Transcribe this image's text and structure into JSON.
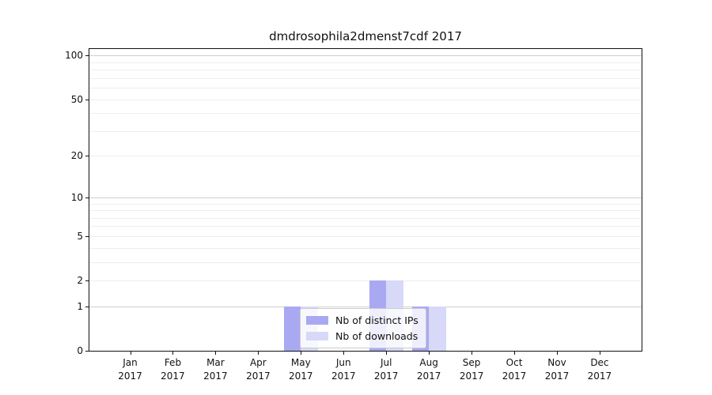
{
  "chart_data": {
    "type": "bar",
    "title": "dmdrosophila2dmenst7cdf 2017",
    "categories": [
      "Jan 2017",
      "Feb 2017",
      "Mar 2017",
      "Apr 2017",
      "May 2017",
      "Jun 2017",
      "Jul 2017",
      "Aug 2017",
      "Sep 2017",
      "Oct 2017",
      "Nov 2017",
      "Dec 2017"
    ],
    "series": [
      {
        "name": "Nb of distinct IPs",
        "color": "#a9a9f2",
        "values": [
          0,
          0,
          0,
          0,
          1,
          0,
          2,
          1,
          0,
          0,
          0,
          0
        ]
      },
      {
        "name": "Nb of downloads",
        "color": "#d8d8f8",
        "values": [
          0,
          0,
          0,
          0,
          1,
          0,
          2,
          1,
          0,
          0,
          0,
          0
        ]
      }
    ],
    "yscale": "log1p",
    "yticks": [
      0,
      1,
      2,
      5,
      10,
      20,
      50,
      100
    ],
    "ylim": [
      0,
      112
    ],
    "xlabel": "",
    "ylabel": "",
    "grid": "horizontal",
    "legend_position": "inside-bottom-center"
  },
  "colors": {
    "axis": "#111111",
    "grid_major": "#cfcfcf",
    "grid_minor": "#eeeeee",
    "text": "#111111",
    "legend_border": "#cccccc",
    "background": "#ffffff"
  }
}
